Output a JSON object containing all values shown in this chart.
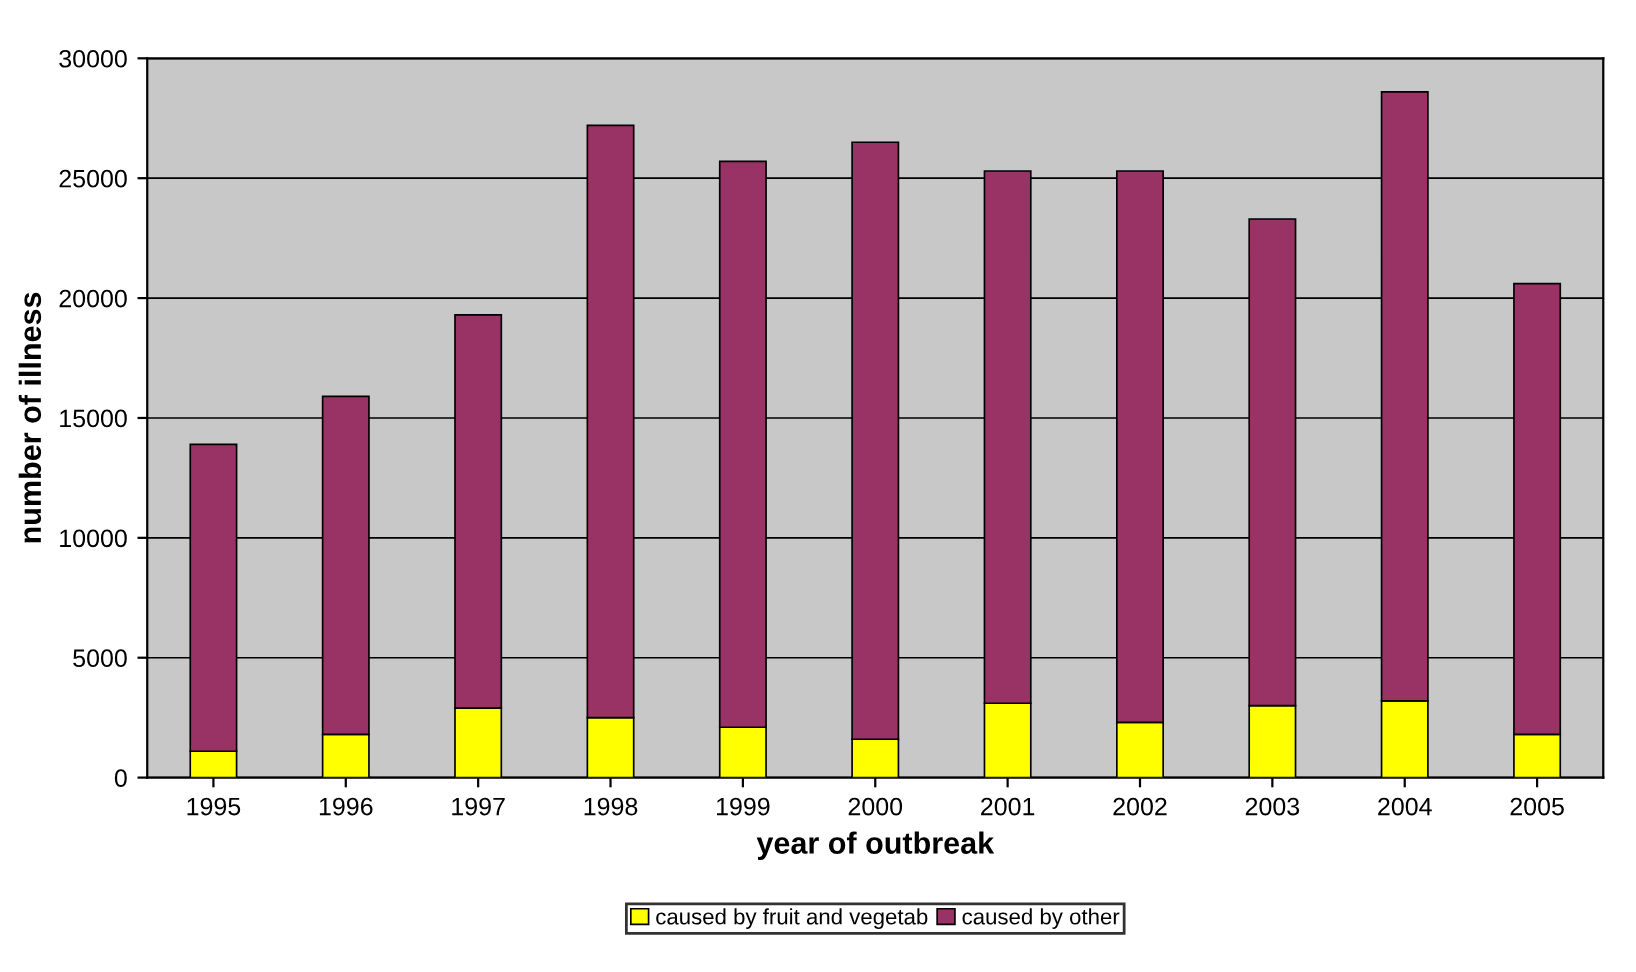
{
  "chart_data": {
    "type": "bar",
    "stacked": true,
    "xlabel": "year of outbreak",
    "ylabel": "number of illness",
    "categories": [
      "1995",
      "1996",
      "1997",
      "1998",
      "1999",
      "2000",
      "2001",
      "2002",
      "2003",
      "2004",
      "2005"
    ],
    "series": [
      {
        "name": "caused by fruit and vegetab",
        "color": "#ffff00",
        "values": [
          1100,
          1800,
          2900,
          2500,
          2100,
          1600,
          3100,
          2300,
          3000,
          3200,
          1800
        ]
      },
      {
        "name": "caused by other",
        "color": "#993366",
        "values": [
          12800,
          14100,
          16400,
          24700,
          23600,
          24900,
          22200,
          23000,
          20300,
          25400,
          18800
        ]
      }
    ],
    "ylim": [
      0,
      30000
    ],
    "yticks": [
      0,
      5000,
      10000,
      15000,
      20000,
      25000,
      30000
    ],
    "grid": "y",
    "legend": "bottom"
  }
}
